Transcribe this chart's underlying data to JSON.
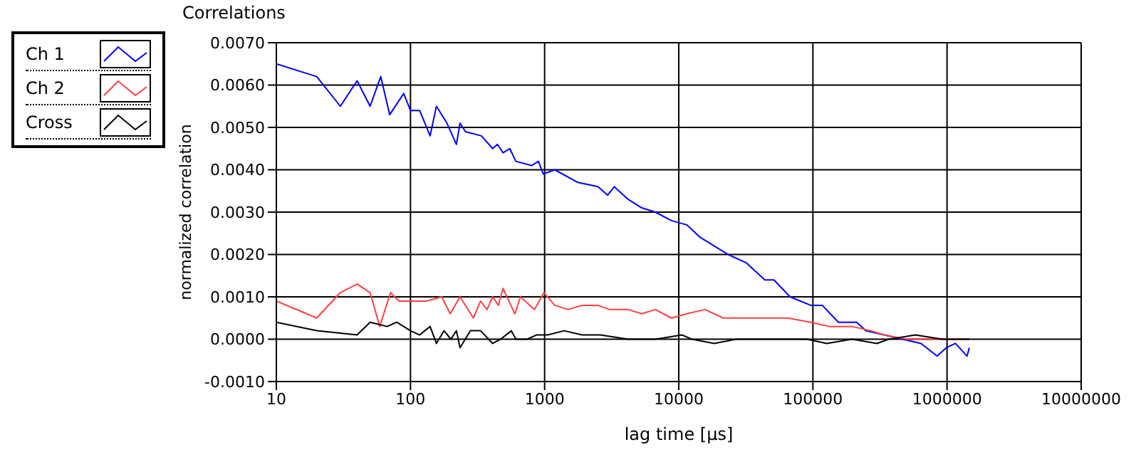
{
  "chart_data": {
    "type": "line",
    "title": "Correlations",
    "xlabel": "lag time [µs]",
    "ylabel": "normalized correlation",
    "log": "x",
    "grid": true,
    "legend": "top left",
    "marker": "none",
    "line_style": "solid",
    "xlim": [
      10,
      10000000
    ],
    "xticks": [
      10,
      100,
      1000,
      10000,
      100000,
      1000000,
      10000000
    ],
    "ylim": [
      -0.001,
      0.007
    ],
    "yticks": [
      {
        "value": -0.001,
        "label": "-0.0010"
      },
      {
        "value": 0,
        "label": "0.0000"
      },
      {
        "value": 0.001,
        "label": "0.0010"
      },
      {
        "value": 0.002,
        "label": "0.0020"
      },
      {
        "value": 0.003,
        "label": "0.0030"
      },
      {
        "value": 0.004,
        "label": "0.0040"
      },
      {
        "value": 0.005,
        "label": "0.0050"
      },
      {
        "value": 0.006,
        "label": "0.0060"
      },
      {
        "value": 0.007,
        "label": "0.0070"
      }
    ],
    "series": [
      {
        "name": "Ch 1",
        "color": "#0000ff",
        "x": [
          10,
          20,
          30,
          40,
          50,
          60,
          70,
          89,
          100,
          117,
          140,
          156,
          187,
          220,
          234,
          257,
          338,
          410,
          445,
          490,
          550,
          610,
          800,
          900,
          975,
          1190,
          1770,
          2500,
          2950,
          3300,
          4200,
          5300,
          6700,
          8800,
          11460,
          14500,
          18400,
          23300,
          32000,
          43800,
          51300,
          67600,
          96400,
          117500,
          155000,
          212000,
          248000,
          340000,
          467000,
          640000,
          843000,
          988000,
          1156000,
          1410000,
          1466000
        ],
        "values": [
          0.0065,
          0.0062,
          0.0055,
          0.0061,
          0.0055,
          0.0062,
          0.0053,
          0.0058,
          0.0054,
          0.0054,
          0.0048,
          0.0055,
          0.0051,
          0.0046,
          0.0051,
          0.0049,
          0.0048,
          0.0045,
          0.0046,
          0.0044,
          0.0045,
          0.0042,
          0.0041,
          0.0042,
          0.0039,
          0.004,
          0.0037,
          0.0036,
          0.0034,
          0.0036,
          0.0033,
          0.0031,
          0.003,
          0.0028,
          0.0027,
          0.0024,
          0.0022,
          0.002,
          0.0018,
          0.0014,
          0.0014,
          0.001,
          0.0008,
          0.0008,
          0.0004,
          0.0004,
          0.0002,
          0.0001,
          0,
          -0.0001,
          -0.0004,
          -0.0002,
          -0.0001,
          -0.0004,
          -0.0002
        ]
      },
      {
        "name": "Ch 2",
        "color": "#ff4040",
        "x": [
          10,
          20,
          30,
          40,
          50,
          59,
          71,
          82,
          100,
          131,
          171,
          198,
          234,
          294,
          333,
          372,
          410,
          452,
          489,
          600,
          660,
          840,
          990,
          1190,
          1500,
          1900,
          2500,
          3050,
          4200,
          5300,
          6700,
          8800,
          11460,
          15700,
          21500,
          29500,
          43800,
          65000,
          96400,
          132000,
          196000,
          269000,
          340000,
          505000,
          811000,
          1466000
        ],
        "values": [
          0.0009,
          0.0005,
          0.0011,
          0.0013,
          0.0011,
          0.0003,
          0.0011,
          0.0009,
          0.0009,
          0.0009,
          0.001,
          0.0006,
          0.001,
          0.0005,
          0.0009,
          0.0007,
          0.001,
          0.0008,
          0.0012,
          0.0006,
          0.001,
          0.0007,
          0.0011,
          0.0008,
          0.0007,
          0.0008,
          0.0008,
          0.0007,
          0.0007,
          0.0006,
          0.0007,
          0.0005,
          0.0006,
          0.0007,
          0.0005,
          0.0005,
          0.0005,
          0.0005,
          0.0004,
          0.0003,
          0.0003,
          0.0002,
          0.0001,
          0,
          0,
          0
        ]
      },
      {
        "name": "Cross",
        "color": "#000000",
        "x": [
          10,
          20,
          40,
          50,
          67,
          79,
          100,
          117,
          140,
          156,
          178,
          200,
          220,
          234,
          280,
          333,
          410,
          470,
          565,
          610,
          740,
          870,
          1055,
          1400,
          1900,
          2600,
          4200,
          6700,
          10600,
          12500,
          18400,
          27000,
          51300,
          90000,
          127000,
          196000,
          300000,
          368000,
          580000,
          922000,
          1466000
        ],
        "values": [
          0.0004,
          0.0002,
          0.0001,
          0.0004,
          0.0003,
          0.0004,
          0.0002,
          0.0001,
          0.0003,
          -0.0001,
          0.0002,
          0,
          0.0002,
          -0.0002,
          0.0002,
          0.0002,
          -0.0001,
          0,
          0.0002,
          0,
          0,
          0.0001,
          0.0001,
          0.0002,
          0.0001,
          0.0001,
          0,
          0,
          0.0001,
          0,
          -0.0001,
          0,
          0,
          0,
          -0.0001,
          0,
          -0.0001,
          0,
          0.0001,
          0,
          0
        ]
      }
    ]
  }
}
